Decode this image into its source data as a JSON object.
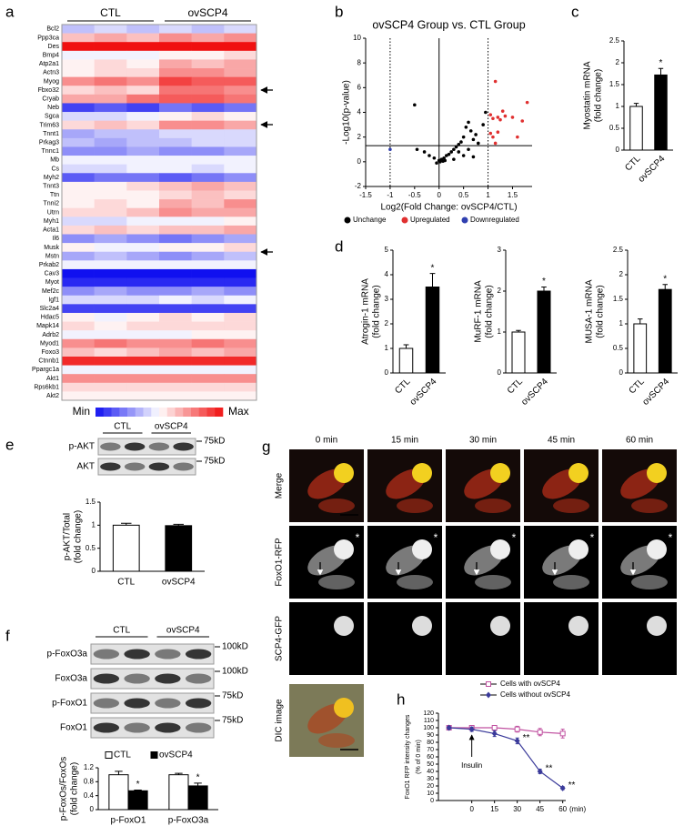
{
  "chart_data": [
    {
      "type": "heatmap",
      "panel": "a",
      "groups": [
        "CTL",
        "ovSCP4"
      ],
      "colors": [
        "#1010f0",
        "#ffffff",
        "#f01010"
      ],
      "legend": {
        "min": "Min",
        "max": "Max"
      },
      "rows": [
        "Bcl2",
        "Ppp3ca",
        "Des",
        "Bmp4",
        "Atp2a1",
        "Actn3",
        "Myog",
        "Fbxo32",
        "Cryab",
        "Neb",
        "Sgca",
        "Trim63",
        "Tnnt1",
        "Prkag3",
        "Tnnc1",
        "Mb",
        "Cs",
        "Myh2",
        "Tnnt3",
        "Ttn",
        "Tnni2",
        "Utrn",
        "Myh1",
        "Acta1",
        "Il6",
        "Musk",
        "Mstn",
        "Prkab2",
        "Cav3",
        "Myot",
        "Mef2c",
        "Igf1",
        "Slc2a4",
        "Hdac5",
        "Mapk14",
        "Adrb2",
        "Myod1",
        "Foxo3",
        "Ctnnb1",
        "Ppargc1a",
        "Akt1",
        "Rps6kb1",
        "Akt2"
      ],
      "values": [
        [
          0.4,
          0.45,
          0.4,
          0.45,
          0.4,
          0.45
        ],
        [
          0.65,
          0.7,
          0.65,
          0.75,
          0.7,
          0.75
        ],
        [
          1,
          1,
          1,
          1,
          1,
          1
        ],
        [
          0.5,
          0.5,
          0.5,
          0.55,
          0.55,
          0.6
        ],
        [
          0.55,
          0.6,
          0.55,
          0.7,
          0.65,
          0.7
        ],
        [
          0.55,
          0.6,
          0.6,
          0.75,
          0.75,
          0.7
        ],
        [
          0.75,
          0.8,
          0.75,
          0.9,
          0.85,
          0.85
        ],
        [
          0.6,
          0.65,
          0.6,
          0.8,
          0.8,
          0.75
        ],
        [
          0.7,
          0.7,
          0.8,
          0.85,
          0.85,
          0.8
        ],
        [
          0.15,
          0.2,
          0.15,
          0.25,
          0.2,
          0.25
        ],
        [
          0.45,
          0.45,
          0.5,
          0.55,
          0.6,
          0.55
        ],
        [
          0.6,
          0.65,
          0.6,
          0.75,
          0.75,
          0.7
        ],
        [
          0.35,
          0.4,
          0.4,
          0.45,
          0.45,
          0.45
        ],
        [
          0.4,
          0.35,
          0.4,
          0.4,
          0.45,
          0.45
        ],
        [
          0.3,
          0.3,
          0.35,
          0.3,
          0.3,
          0.35
        ],
        [
          0.5,
          0.5,
          0.5,
          0.5,
          0.5,
          0.5
        ],
        [
          0.45,
          0.45,
          0.5,
          0.5,
          0.45,
          0.5
        ],
        [
          0.2,
          0.25,
          0.25,
          0.2,
          0.25,
          0.3
        ],
        [
          0.55,
          0.55,
          0.6,
          0.65,
          0.7,
          0.65
        ],
        [
          0.55,
          0.55,
          0.55,
          0.6,
          0.65,
          0.6
        ],
        [
          0.55,
          0.6,
          0.55,
          0.7,
          0.65,
          0.75
        ],
        [
          0.6,
          0.6,
          0.65,
          0.75,
          0.7,
          0.7
        ],
        [
          0.45,
          0.45,
          0.5,
          0.5,
          0.5,
          0.55
        ],
        [
          0.6,
          0.65,
          0.6,
          0.65,
          0.65,
          0.7
        ],
        [
          0.3,
          0.35,
          0.3,
          0.25,
          0.3,
          0.35
        ],
        [
          0.55,
          0.5,
          0.5,
          0.55,
          0.55,
          0.6
        ],
        [
          0.35,
          0.4,
          0.35,
          0.3,
          0.35,
          0.4
        ],
        [
          0.5,
          0.5,
          0.5,
          0.5,
          0.5,
          0.5
        ],
        [
          0.05,
          0.05,
          0.05,
          0.05,
          0.05,
          0.05
        ],
        [
          0.1,
          0.1,
          0.1,
          0.1,
          0.1,
          0.1
        ],
        [
          0.3,
          0.35,
          0.3,
          0.3,
          0.35,
          0.3
        ],
        [
          0.45,
          0.45,
          0.45,
          0.5,
          0.45,
          0.5
        ],
        [
          0.15,
          0.15,
          0.15,
          0.15,
          0.15,
          0.15
        ],
        [
          0.55,
          0.5,
          0.55,
          0.6,
          0.55,
          0.6
        ],
        [
          0.6,
          0.55,
          0.6,
          0.6,
          0.6,
          0.6
        ],
        [
          0.5,
          0.5,
          0.5,
          0.5,
          0.55,
          0.55
        ],
        [
          0.75,
          0.8,
          0.75,
          0.75,
          0.8,
          0.75
        ],
        [
          0.65,
          0.6,
          0.65,
          0.7,
          0.65,
          0.7
        ],
        [
          0.95,
          0.95,
          0.95,
          0.95,
          0.95,
          0.95
        ],
        [
          0.5,
          0.5,
          0.5,
          0.5,
          0.5,
          0.5
        ],
        [
          0.75,
          0.75,
          0.75,
          0.75,
          0.75,
          0.75
        ],
        [
          0.6,
          0.6,
          0.6,
          0.6,
          0.6,
          0.6
        ],
        [
          0.55,
          0.55,
          0.55,
          0.55,
          0.55,
          0.55
        ]
      ]
    },
    {
      "type": "scatter",
      "panel": "b",
      "title": "ovSCP4 Group vs. CTL Group",
      "xlabel": "Log2(Fold Change: ovSCP4/CTL)",
      "ylabel": [
        "-Log10(p-value)"
      ],
      "xlim": [
        -1.5,
        1.9
      ],
      "xticks": [
        -1.5,
        -1,
        -0.5,
        0,
        0.5,
        1,
        1.5
      ],
      "ylim": [
        -2,
        10
      ],
      "yticks": [
        -2,
        0,
        2,
        4,
        6,
        8,
        10
      ],
      "vlines": [
        -1,
        1
      ],
      "hlines": [
        1.3
      ],
      "series": [
        {
          "name": "Unchange",
          "color": "#000000",
          "x": [
            -0.5,
            -0.45,
            -0.3,
            -0.2,
            -0.1,
            0,
            0.05,
            0.1,
            0.15,
            0.2,
            0.25,
            0.3,
            0.35,
            0.4,
            0.45,
            0.5,
            0.55,
            0.6,
            0.65,
            0.7,
            0.75,
            0.8,
            0.9,
            0.95,
            0.5,
            0.3,
            -0.05,
            0.02,
            0.08,
            0.12,
            0.4,
            0.6,
            0.7
          ],
          "y": [
            4.6,
            1.0,
            0.8,
            0.5,
            0.3,
            0.1,
            0.2,
            0.3,
            0.5,
            0.6,
            0.8,
            1.0,
            1.2,
            1.4,
            1.6,
            2.0,
            2.8,
            3.2,
            2.5,
            1.8,
            2.2,
            1.5,
            3.0,
            4.0,
            0.5,
            0.2,
            -0.1,
            0.0,
            0.05,
            0.1,
            0.8,
            1.0,
            0.4
          ]
        },
        {
          "name": "Upregulated",
          "color": "#e03030",
          "x": [
            1.15,
            1.05,
            1.1,
            1.2,
            1.25,
            1.35,
            1.3,
            1.5,
            1.7,
            1.8,
            1.05,
            1.1,
            1.2,
            1.6,
            1.15
          ],
          "y": [
            6.5,
            3.8,
            3.5,
            3.6,
            3.4,
            3.7,
            4.1,
            3.6,
            3.3,
            4.8,
            2.3,
            2.0,
            2.4,
            2.0,
            1.5
          ]
        },
        {
          "name": "Downregulated",
          "color": "#3040b0",
          "x": [
            -1.0
          ],
          "y": [
            1.0
          ]
        }
      ]
    },
    {
      "type": "bar",
      "panel": "c",
      "ylabel": [
        "Myostatin mRNA",
        "(fold change)"
      ],
      "categories": [
        "CTL",
        "ovSCP4"
      ],
      "values": [
        1.0,
        1.72
      ],
      "errors": [
        0.07,
        0.15
      ],
      "significance": [
        null,
        "*"
      ],
      "colors": [
        "#ffffff",
        "#000000"
      ],
      "ylim": [
        0,
        2.5
      ],
      "yticks": [
        0,
        0.5,
        1,
        1.5,
        2,
        2.5
      ]
    },
    {
      "type": "bar",
      "panel": "d",
      "ylabel": [
        "Atrogin-1 mRNA",
        "(fold change)"
      ],
      "categories": [
        "CTL",
        "ovSCP4"
      ],
      "values": [
        1.0,
        3.5
      ],
      "errors": [
        0.15,
        0.55
      ],
      "significance": [
        null,
        "*"
      ],
      "colors": [
        "#ffffff",
        "#000000"
      ],
      "ylim": [
        0,
        5
      ],
      "yticks": [
        0,
        1,
        2,
        3,
        4,
        5
      ]
    },
    {
      "type": "bar",
      "ylabel": [
        "MuRF-1 mRNA",
        "(fold change)"
      ],
      "categories": [
        "CTL",
        "ovSCP4"
      ],
      "values": [
        1.0,
        2.0
      ],
      "errors": [
        0.04,
        0.1
      ],
      "significance": [
        null,
        "*"
      ],
      "colors": [
        "#ffffff",
        "#000000"
      ],
      "ylim": [
        0,
        3
      ],
      "yticks": [
        0,
        1,
        2,
        3
      ]
    },
    {
      "type": "bar",
      "ylabel": [
        "MUSA-1 mRNA",
        "(fold change)"
      ],
      "categories": [
        "CTL",
        "ovSCP4"
      ],
      "values": [
        1.0,
        1.7
      ],
      "errors": [
        0.1,
        0.1
      ],
      "significance": [
        null,
        "*"
      ],
      "colors": [
        "#ffffff",
        "#000000"
      ],
      "ylim": [
        0,
        2.5
      ],
      "yticks": [
        0,
        0.5,
        1,
        1.5,
        2,
        2.5
      ]
    },
    {
      "type": "bar",
      "ylabel": [
        "p-AKT/Total",
        "(fold change)"
      ],
      "categories": [
        "CTL",
        "ovSCP4"
      ],
      "values": [
        1.0,
        0.99
      ],
      "errors": [
        0.04,
        0.03
      ],
      "significance": [
        null,
        null
      ],
      "colors": [
        "#ffffff",
        "#000000"
      ],
      "ylim": [
        0,
        1.5
      ],
      "yticks": [
        0,
        0.5,
        1,
        1.5
      ]
    },
    {
      "type": "bar",
      "ylabel": [
        "p-FoxOs/FoxOs",
        "(fold change)"
      ],
      "categories": [
        "p-FoxO1",
        "p-FoxO3a"
      ],
      "series": [
        {
          "name": "CTL",
          "color": "#ffffff",
          "values": [
            1.0,
            1.0
          ],
          "errors": [
            0.1,
            0.04
          ],
          "significance": [
            null,
            null
          ]
        },
        {
          "name": "ovSCP4",
          "color": "#000000",
          "values": [
            0.54,
            0.68
          ],
          "errors": [
            0.02,
            0.08
          ],
          "significance": [
            "*",
            "*"
          ]
        }
      ],
      "ylim": [
        0,
        1.2
      ],
      "yticks": [
        0,
        0.4,
        0.8,
        1.2
      ]
    },
    {
      "type": "line",
      "panel": "h",
      "ylabel": [
        "FoxO1 RFP intensity changes",
        "(% of 0 min)"
      ],
      "xlabel": "(min)",
      "annotation": "Insulin",
      "x": [
        -15,
        0,
        15,
        30,
        45,
        60
      ],
      "xlim": [
        -22,
        62
      ],
      "xticks": [
        0,
        15,
        30,
        45,
        60
      ],
      "ylim": [
        0,
        120
      ],
      "yticks": [
        0,
        10,
        20,
        30,
        40,
        50,
        60,
        70,
        80,
        90,
        100,
        110,
        120
      ],
      "series": [
        {
          "name": "Cells with ovSCP4",
          "color": "#c050a0",
          "marker": "square",
          "values": [
            100,
            100,
            100,
            98,
            94,
            92
          ],
          "errors": [
            2,
            2,
            3,
            4,
            5,
            6
          ],
          "significance": [
            null,
            null,
            null,
            null,
            null,
            null
          ]
        },
        {
          "name": "Cells without ovSCP4",
          "color": "#3a3a9a",
          "marker": "diamond",
          "values": [
            100,
            98,
            92,
            82,
            40,
            17
          ],
          "errors": [
            2,
            3,
            4,
            4,
            3,
            2
          ],
          "significance": [
            null,
            null,
            null,
            "**",
            "**",
            "**"
          ]
        }
      ]
    }
  ],
  "blot_e": {
    "panel": "e",
    "groups": [
      "CTL",
      "ovSCP4"
    ],
    "bands": [
      {
        "label": "p-AKT",
        "size": "75kD"
      },
      {
        "label": "AKT",
        "size": "75kD"
      }
    ]
  },
  "blot_f": {
    "panel": "f",
    "groups": [
      "CTL",
      "ovSCP4"
    ],
    "bands": [
      {
        "label": "p-FoxO3a",
        "size": "100kD"
      },
      {
        "label": "FoxO3a",
        "size": "100kD"
      },
      {
        "label": "p-FoxO1",
        "size": "75kD"
      },
      {
        "label": "FoxO1",
        "size": "75kD"
      }
    ]
  },
  "micrograph": {
    "panel": "g",
    "times": [
      "0 min",
      "15 min",
      "30 min",
      "45  min",
      "60 min"
    ],
    "rows": [
      "Merge",
      "FoxO1-RFP",
      "SCP4-GFP",
      "DIC image"
    ],
    "marker": "*"
  }
}
